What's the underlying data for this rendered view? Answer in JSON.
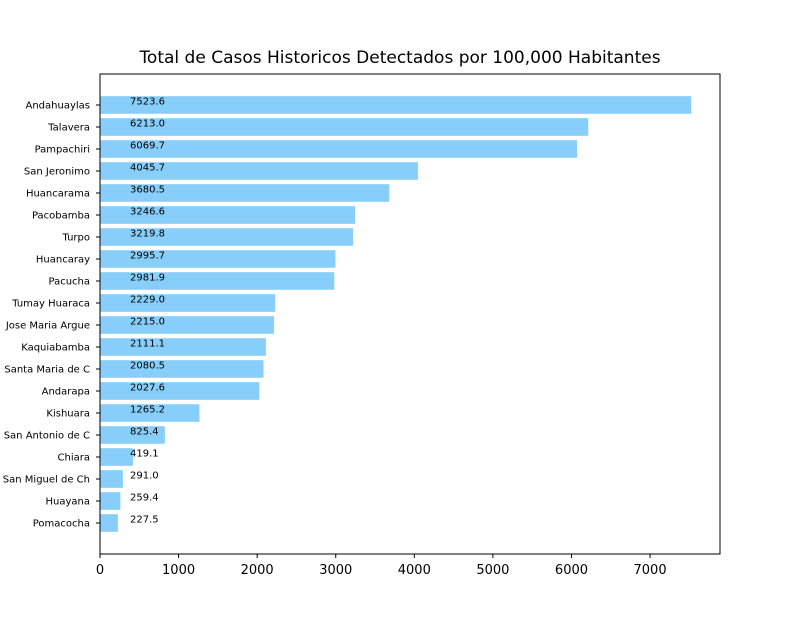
{
  "chart_data": {
    "type": "bar",
    "orientation": "horizontal",
    "title": "Total de Casos Historicos Detectados por 100,000 Habitantes",
    "xlabel": "",
    "ylabel": "",
    "xlim": [
      0,
      7890
    ],
    "grid": false,
    "bar_color": "#87cefa",
    "categories": [
      "Andahuaylas",
      "Talavera",
      "Pampachiri",
      "San Jeronimo",
      "Huancarama",
      "Pacobamba",
      "Turpo",
      "Huancaray",
      "Pacucha",
      "Tumay Huaraca",
      "Jose Maria Argue",
      "Kaquiabamba",
      "Santa Maria de C",
      "Andarapa",
      "Kishuara",
      "San Antonio de C",
      "Chiara",
      "San Miguel de Ch",
      "Huayana",
      "Pomacocha"
    ],
    "values": [
      7523.6,
      6213.0,
      6069.7,
      4045.7,
      3680.5,
      3246.6,
      3219.8,
      2995.7,
      2981.9,
      2229.0,
      2215.0,
      2111.1,
      2080.5,
      2027.6,
      1265.2,
      825.4,
      419.1,
      291.0,
      259.4,
      227.5
    ],
    "value_labels": [
      "7523.6",
      "6213.0",
      "6069.7",
      "4045.7",
      "3680.5",
      "3246.6",
      "3219.8",
      "2995.7",
      "2981.9",
      "2229.0",
      "2215.0",
      "2111.1",
      "2080.5",
      "2027.6",
      "1265.2",
      "825.4",
      "419.1",
      "291.0",
      "259.4",
      "227.5"
    ],
    "xticks": [
      0,
      1000,
      2000,
      3000,
      4000,
      5000,
      6000,
      7000
    ],
    "xtick_labels": [
      "0",
      "1000",
      "2000",
      "3000",
      "4000",
      "5000",
      "6000",
      "7000"
    ]
  }
}
